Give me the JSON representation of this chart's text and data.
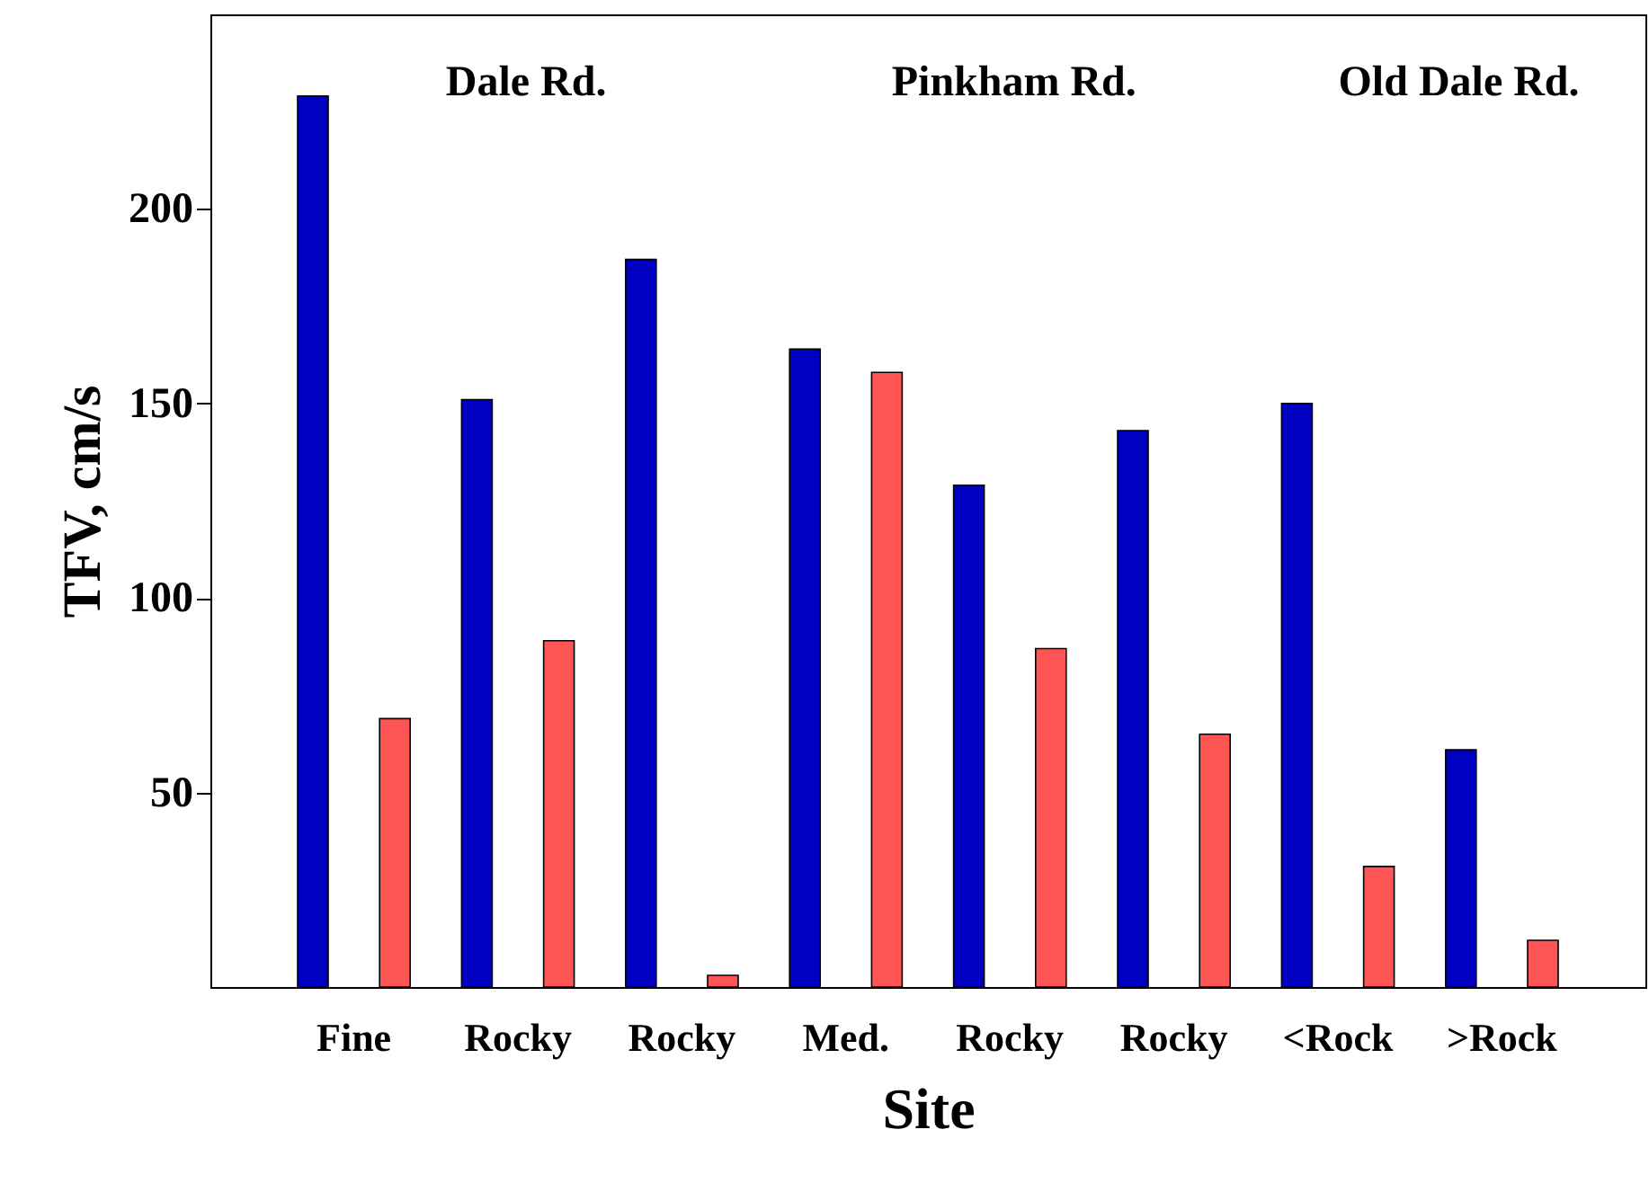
{
  "chart_data": {
    "type": "bar",
    "xlabel": "Site",
    "ylabel": "TFV, cm/s",
    "categories": [
      "Fine",
      "Rocky",
      "Rocky",
      "Med.",
      "Rocky",
      "Rocky",
      "<Rock",
      ">Rock"
    ],
    "series": [
      {
        "color": "#0000c0",
        "values": [
          229,
          151,
          187,
          164,
          129,
          143,
          150,
          61
        ]
      },
      {
        "color": "#ff5555",
        "values": [
          69,
          89,
          3,
          158,
          87,
          65,
          31,
          12
        ]
      }
    ],
    "ylim": [
      0,
      250
    ],
    "yticks": [
      50,
      100,
      150,
      200
    ],
    "grid": false,
    "annotations": [
      "Dale Rd.",
      "Pinkham  Rd.",
      "Old Dale Rd."
    ]
  }
}
